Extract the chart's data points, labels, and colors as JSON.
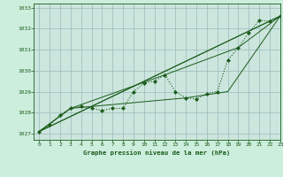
{
  "title": "Graphe pression niveau de la mer (hPa)",
  "bg_color": "#cceedd",
  "plot_bg_color": "#cce5dd",
  "grid_color": "#99bbbb",
  "line_color": "#1a5c1a",
  "marker_color": "#1a5c1a",
  "xlim": [
    -0.5,
    23
  ],
  "ylim": [
    1026.7,
    1033.2
  ],
  "yticks": [
    1027,
    1028,
    1029,
    1030,
    1031,
    1032,
    1033
  ],
  "xticks": [
    0,
    1,
    2,
    3,
    4,
    5,
    6,
    7,
    8,
    9,
    10,
    11,
    12,
    13,
    14,
    15,
    16,
    17,
    18,
    19,
    20,
    21,
    22,
    23
  ],
  "main_series": {
    "x": [
      0,
      1,
      2,
      3,
      4,
      5,
      6,
      7,
      8,
      9,
      10,
      11,
      12,
      13,
      14,
      15,
      16,
      17,
      18,
      19,
      20,
      21,
      22,
      23
    ],
    "y": [
      1027.1,
      1027.4,
      1027.9,
      1028.2,
      1028.3,
      1028.2,
      1028.1,
      1028.2,
      1028.2,
      1029.0,
      1029.4,
      1029.5,
      1029.8,
      1029.0,
      1028.7,
      1028.65,
      1028.9,
      1029.0,
      1030.5,
      1031.1,
      1031.8,
      1032.4,
      1032.35,
      1032.6
    ]
  },
  "envelope_lines": [
    {
      "x": [
        0,
        23
      ],
      "y": [
        1027.1,
        1032.6
      ]
    },
    {
      "x": [
        0,
        3,
        12,
        19,
        23
      ],
      "y": [
        1027.1,
        1028.2,
        1029.8,
        1031.1,
        1032.6
      ]
    },
    {
      "x": [
        0,
        3,
        14,
        18,
        23
      ],
      "y": [
        1027.1,
        1028.2,
        1028.7,
        1029.0,
        1032.6
      ]
    }
  ]
}
